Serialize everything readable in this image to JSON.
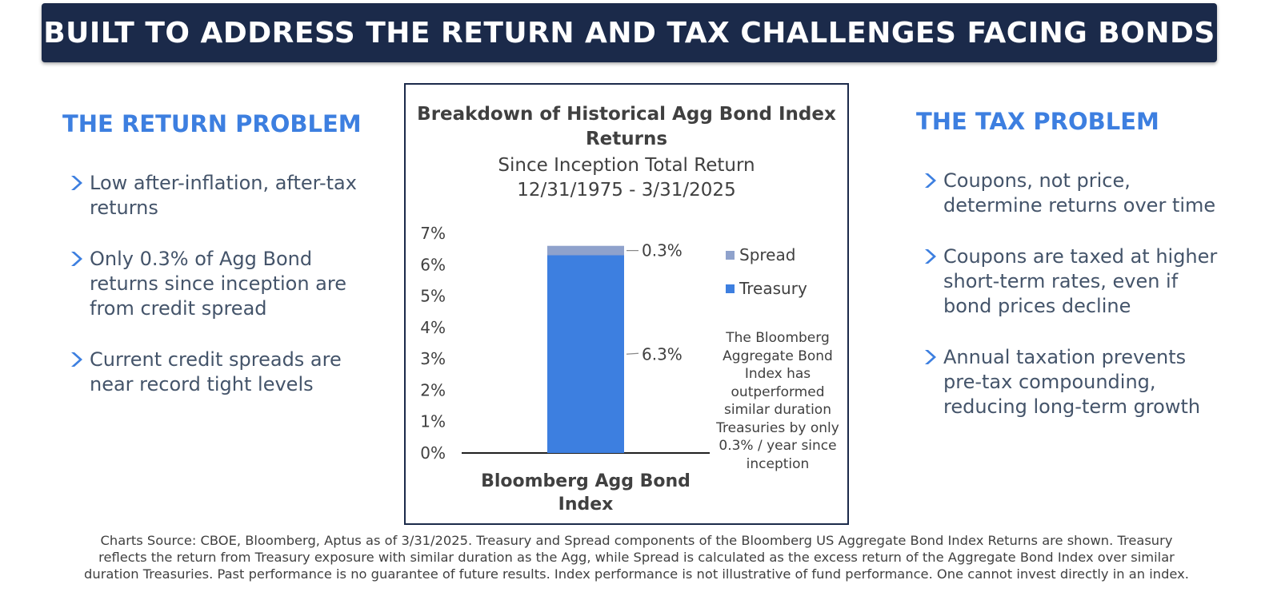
{
  "banner": {
    "title": "BUILT TO ADDRESS THE RETURN AND TAX CHALLENGES FACING BONDS"
  },
  "left_panel": {
    "title": "THE RETURN PROBLEM",
    "bullets": [
      "Low after-inflation, after-tax returns",
      "Only 0.3% of Agg Bond returns since inception are from credit spread",
      "Current credit spreads are near record tight levels"
    ]
  },
  "right_panel": {
    "title": "THE TAX PROBLEM",
    "bullets": [
      "Coupons, not price, determine returns over time",
      "Coupons are taxed at higher short-term rates, even if bond prices decline",
      "Annual taxation prevents pre-tax compounding, reducing long-term growth"
    ]
  },
  "chart_data": {
    "type": "bar",
    "stacked": true,
    "title": "Breakdown of Historical Agg Bond Index Returns",
    "subtitle_line1": "Since Inception Total Return",
    "subtitle_line2": "12/31/1975 - 3/31/2025",
    "categories": [
      "Bloomberg Agg Bond Index"
    ],
    "series": [
      {
        "name": "Treasury",
        "values": [
          6.3
        ],
        "color": "#3d7fe0",
        "label": "6.3%"
      },
      {
        "name": "Spread",
        "values": [
          0.3
        ],
        "color": "#8fa2cc",
        "label": "0.3%"
      }
    ],
    "legend_order": [
      "Spread",
      "Treasury"
    ],
    "legend_position": "right",
    "ylim": [
      0,
      7
    ],
    "yticks": [
      "0%",
      "1%",
      "2%",
      "3%",
      "4%",
      "5%",
      "6%",
      "7%"
    ],
    "grid": false,
    "note": "The Bloomberg Aggregate Bond Index has outperformed similar duration Treasuries by only 0.3% / year since inception"
  },
  "footer": {
    "line1": "Charts Source: CBOE, Bloomberg, Aptus as of 3/31/2025. Treasury and Spread components of the Bloomberg US Aggregate Bond Index Returns are shown. Treasury",
    "line2": "reflects the return from Treasury exposure with similar duration as the Agg, while Spread is calculated as the excess return of the Aggregate Bond Index over similar",
    "line3": "duration Treasuries. Past performance is no guarantee of future results. Index performance is not illustrative of fund performance. One cannot invest directly in an index."
  }
}
